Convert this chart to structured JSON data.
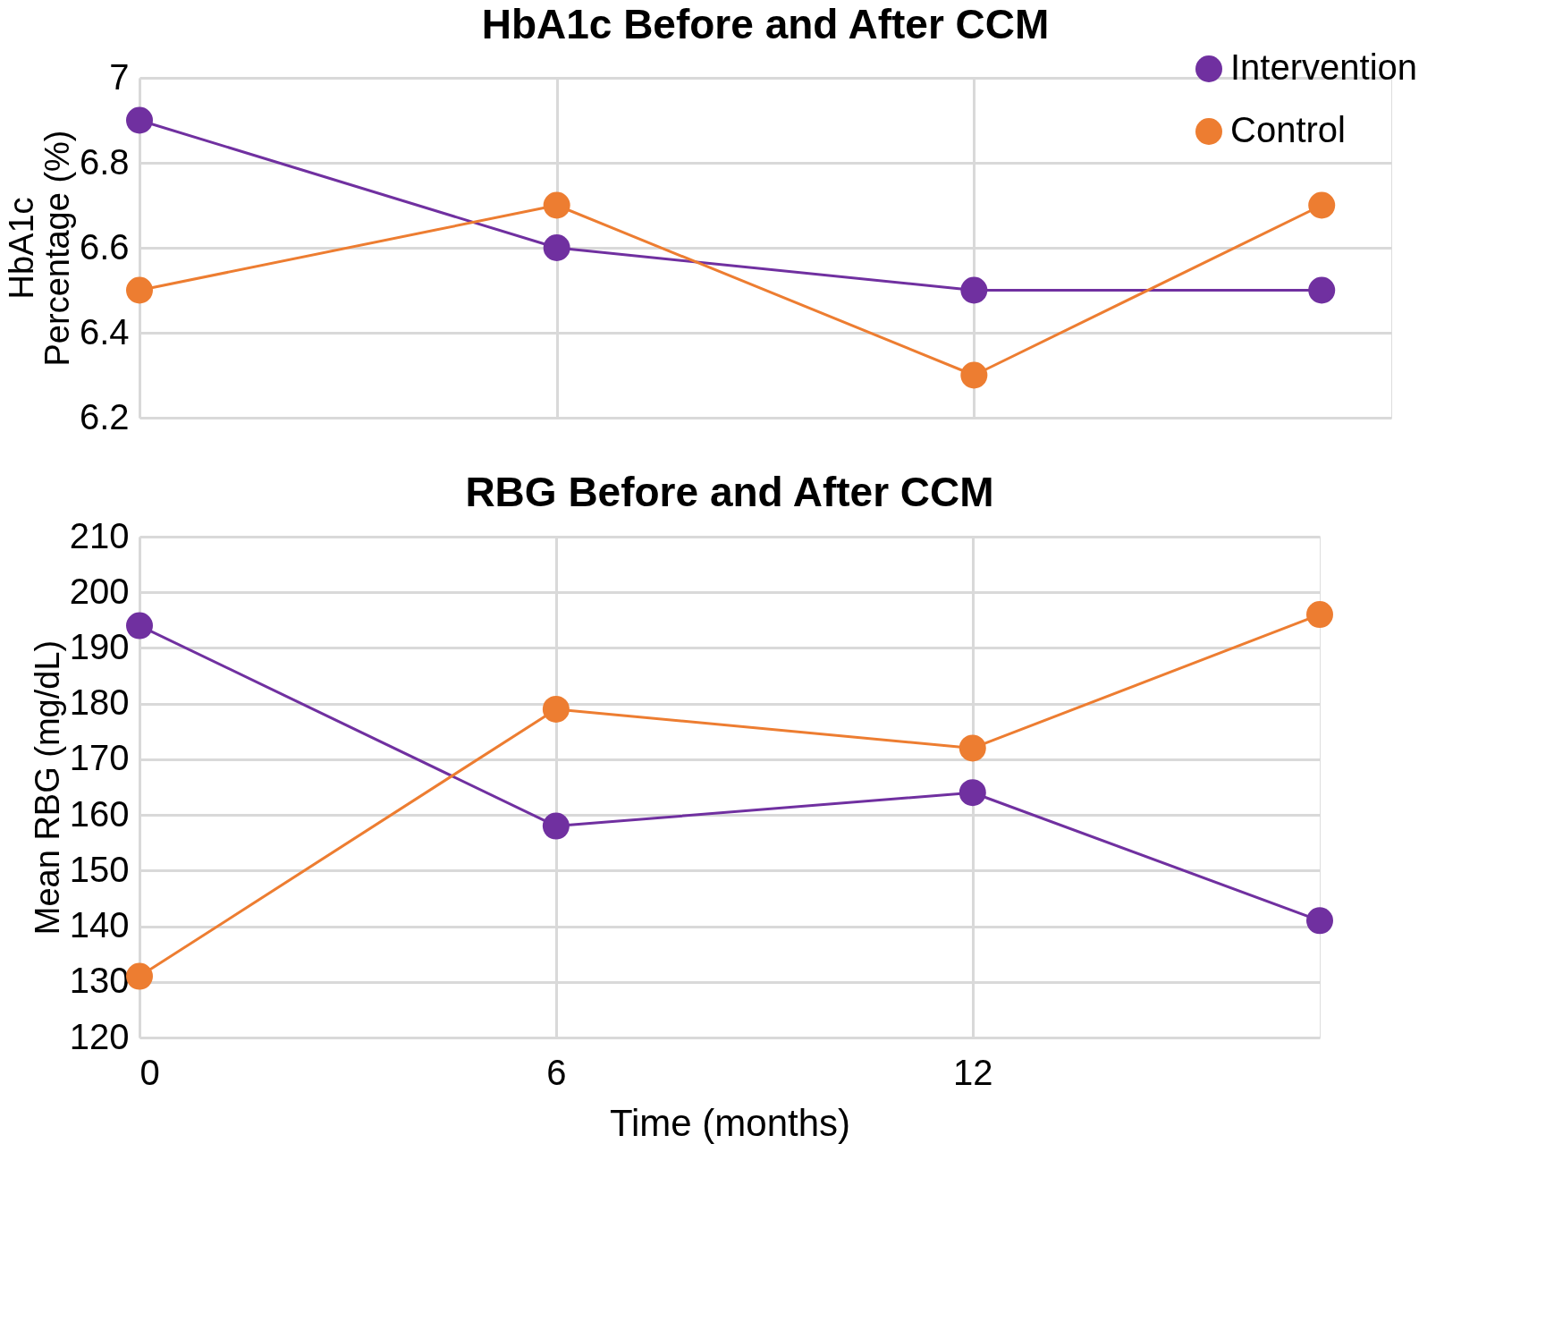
{
  "chart_data": [
    {
      "type": "line",
      "title": "HbA1c Before and After CCM",
      "ylabel": "HbA1c Percentage (%)",
      "x": [
        0,
        6,
        12,
        17
      ],
      "xlim": [
        0,
        18
      ],
      "xticks": [
        0,
        6,
        12
      ],
      "ylim": [
        6.2,
        7
      ],
      "yticks": [
        6.2,
        6.4,
        6.6,
        6.8,
        7
      ],
      "tick_labels": "y",
      "grid": true,
      "legend": "top right",
      "marker": "circle",
      "line_style": "solid",
      "series": [
        {
          "name": "Intervention",
          "color": "#7030a0",
          "values": [
            6.9,
            6.6,
            6.5,
            6.5
          ]
        },
        {
          "name": "Control",
          "color": "#ed7d31",
          "values": [
            6.5,
            6.7,
            6.3,
            6.7
          ]
        }
      ]
    },
    {
      "type": "line",
      "title": "RBG Before and After CCM",
      "xlabel": "Time (months)",
      "ylabel": "Mean RBG (mg/dL)",
      "x": [
        0,
        6,
        12,
        17
      ],
      "xlim": [
        0,
        17
      ],
      "xticks": [
        0,
        6,
        12
      ],
      "ylim": [
        120,
        210
      ],
      "yticks": [
        120,
        130,
        140,
        150,
        160,
        170,
        180,
        190,
        200,
        210
      ],
      "grid": true,
      "marker": "circle",
      "line_style": "solid",
      "series": [
        {
          "color": "#7030a0",
          "values": [
            194,
            158,
            164,
            141
          ]
        },
        {
          "color": "#ed7d31",
          "values": [
            131,
            179,
            172,
            196
          ]
        }
      ]
    }
  ]
}
